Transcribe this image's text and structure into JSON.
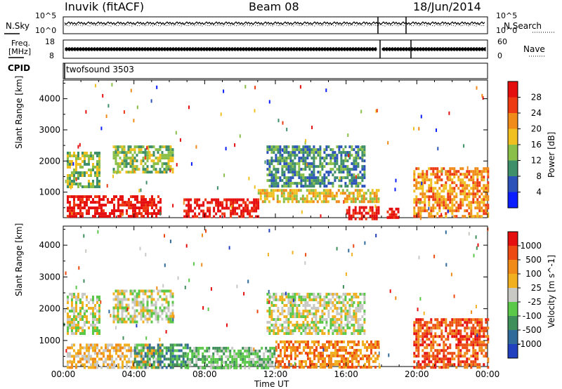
{
  "header": {
    "station": "Inuvik (fitACF)",
    "beam": "Beam 08",
    "date": "18/Jun/2014"
  },
  "noise_panel": {
    "left_label": "N.Sky",
    "right_label": "N.Search",
    "left_ticks": [
      "10^5",
      "10^0"
    ],
    "right_ticks": [
      "10^5",
      "10^0"
    ]
  },
  "freq_panel": {
    "left_label_1": "Freq.",
    "left_label_2": "[MHz]",
    "right_label": "Nave",
    "left_ticks": [
      "18",
      "8"
    ],
    "right_ticks": [
      "60",
      "0"
    ]
  },
  "cpid_panel": {
    "label": "CPID",
    "program": "twofsound 3503"
  },
  "chart_data": [
    {
      "type": "heatmap",
      "title": "Power",
      "ylabel": "Slant Range [km]",
      "ylim": [
        180,
        4600
      ],
      "yticks": [
        "1000",
        "2000",
        "3000",
        "4000"
      ],
      "colorbar_label": "Power [dB]",
      "colorbar_ticks": [
        "4",
        "8",
        "12",
        "16",
        "20",
        "24",
        "28"
      ],
      "colorbar_colors": [
        "#0a1eff",
        "#2a52b8",
        "#3f8f6a",
        "#8ac04a",
        "#f0c020",
        "#f08a18",
        "#ee3a12",
        "#e60f0f"
      ],
      "regions": [
        {
          "x0": 0.2,
          "x1": 5.5,
          "y0": 180,
          "y1": 900,
          "level": 7
        },
        {
          "x0": 0.2,
          "x1": 2.0,
          "y0": 1200,
          "y1": 2300,
          "level": 3
        },
        {
          "x0": 2.8,
          "x1": 6.2,
          "y0": 1600,
          "y1": 2500,
          "level": 3
        },
        {
          "x0": 6.8,
          "x1": 11.0,
          "y0": 180,
          "y1": 800,
          "level": 7
        },
        {
          "x0": 11.0,
          "x1": 18.0,
          "y0": 700,
          "y1": 1100,
          "level": 4
        },
        {
          "x0": 11.5,
          "x1": 17.0,
          "y0": 1200,
          "y1": 2500,
          "level": 2
        },
        {
          "x0": 16.0,
          "x1": 17.9,
          "y0": 180,
          "y1": 550,
          "level": 7
        },
        {
          "x0": 18.3,
          "x1": 19.0,
          "y0": 180,
          "y1": 500,
          "level": 7
        },
        {
          "x0": 19.8,
          "x1": 24.0,
          "y0": 180,
          "y1": 1800,
          "level": 5
        }
      ]
    },
    {
      "type": "heatmap",
      "title": "Velocity",
      "ylabel": "Slant Range [km]",
      "xlabel": "Time UT",
      "ylim": [
        180,
        4600
      ],
      "yticks": [
        "1000",
        "2000",
        "3000",
        "4000"
      ],
      "xticks": [
        "00:00",
        "04:00",
        "08:00",
        "12:00",
        "16:00",
        "20:00",
        "00:00"
      ],
      "colorbar_label": "Velocity [m s^-1]",
      "colorbar_ticks": [
        "1000",
        "500",
        "100",
        "25",
        "-25",
        "-100",
        "-500",
        "-1000"
      ],
      "colorbar_colors": [
        "#2040c0",
        "#2f6a9a",
        "#3f8f5a",
        "#5cc84a",
        "#c8c8c4",
        "#f0b020",
        "#f08a18",
        "#ec4a12",
        "#e60f0f"
      ],
      "regions": [
        {
          "x0": 0.2,
          "x1": 5.5,
          "y0": 180,
          "y1": 900,
          "level": 5
        },
        {
          "x0": 0.2,
          "x1": 2.0,
          "y0": 1200,
          "y1": 2500,
          "level": 4
        },
        {
          "x0": 2.8,
          "x1": 6.2,
          "y0": 1600,
          "y1": 2600,
          "level": 4
        },
        {
          "x0": 4.0,
          "x1": 7.0,
          "y0": 180,
          "y1": 900,
          "level": 2
        },
        {
          "x0": 7.0,
          "x1": 12.0,
          "y0": 180,
          "y1": 800,
          "level": 3
        },
        {
          "x0": 12.0,
          "x1": 18.0,
          "y0": 180,
          "y1": 1000,
          "level": 6
        },
        {
          "x0": 11.5,
          "x1": 17.0,
          "y0": 1200,
          "y1": 2500,
          "level": 4
        },
        {
          "x0": 19.8,
          "x1": 24.0,
          "y0": 180,
          "y1": 1700,
          "level": 7
        }
      ]
    }
  ]
}
